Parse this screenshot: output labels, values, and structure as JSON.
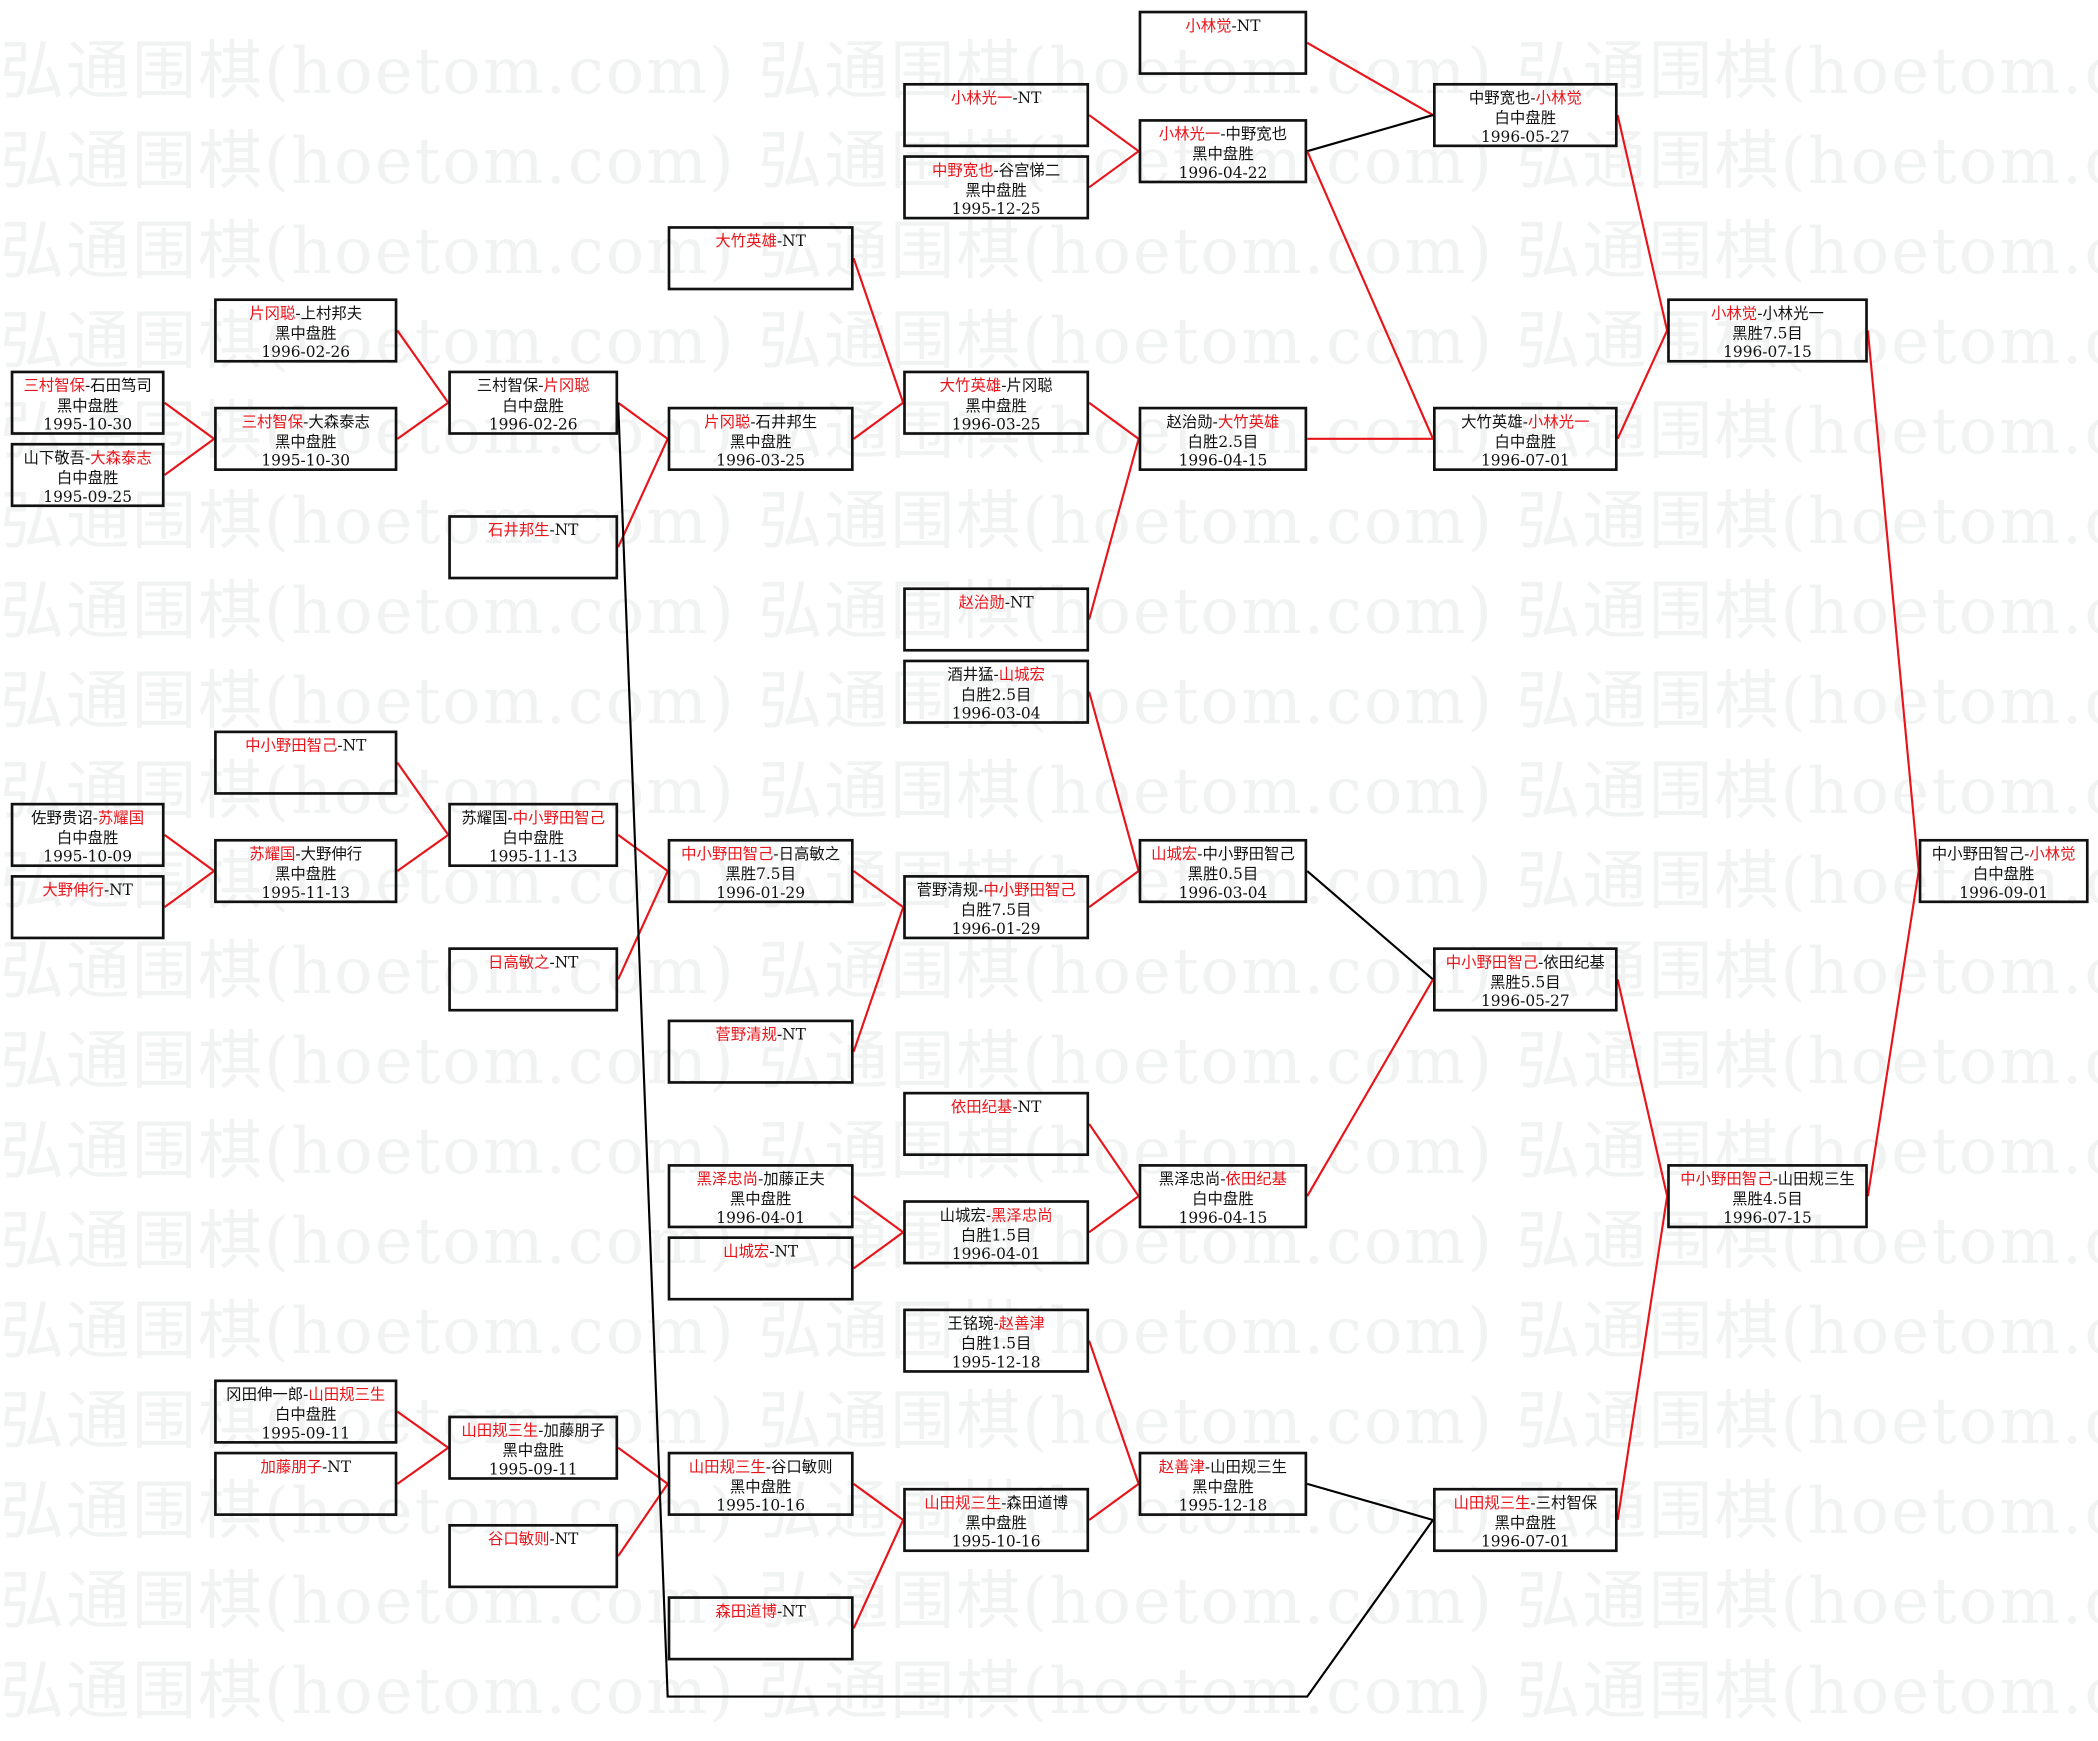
{
  "watermark": "弘通围棋(hoetom.com)",
  "colors": {
    "winner": "#e8141a",
    "text": "#111111",
    "line_red": "#e8141a",
    "line_black": "#000000"
  },
  "separator": "-",
  "boxes": [
    {
      "players": [
        "三村智保",
        "石田笃司"
      ],
      "winner": 0,
      "result": "黑中盘胜",
      "date": "1995-10-30"
    },
    {
      "players": [
        "山下敬吾",
        "大森泰志"
      ],
      "winner": 1,
      "result": "白中盘胜",
      "date": "1995-09-25"
    },
    {
      "players": [
        "佐野贵诏",
        "苏耀国"
      ],
      "winner": 1,
      "result": "白中盘胜",
      "date": "1995-10-09"
    },
    {
      "players": [
        "大野伸行",
        "NT"
      ],
      "winner": 0
    },
    {
      "players": [
        "片冈聪",
        "上村邦夫"
      ],
      "winner": 0,
      "result": "黑中盘胜",
      "date": "1996-02-26"
    },
    {
      "players": [
        "三村智保",
        "大森泰志"
      ],
      "winner": 0,
      "result": "黑中盘胜",
      "date": "1995-10-30"
    },
    {
      "players": [
        "中小野田智己",
        "NT"
      ],
      "winner": 0
    },
    {
      "players": [
        "苏耀国",
        "大野伸行"
      ],
      "winner": 0,
      "result": "黑中盘胜",
      "date": "1995-11-13"
    },
    {
      "players": [
        "冈田伸一郎",
        "山田规三生"
      ],
      "winner": 1,
      "result": "白中盘胜",
      "date": "1995-09-11"
    },
    {
      "players": [
        "加藤朋子",
        "NT"
      ],
      "winner": 0
    },
    {
      "players": [
        "三村智保",
        "片冈聪"
      ],
      "winner": 1,
      "result": "白中盘胜",
      "date": "1996-02-26"
    },
    {
      "players": [
        "石井邦生",
        "NT"
      ],
      "winner": 0
    },
    {
      "players": [
        "苏耀国",
        "中小野田智己"
      ],
      "winner": 1,
      "result": "白中盘胜",
      "date": "1995-11-13"
    },
    {
      "players": [
        "日高敏之",
        "NT"
      ],
      "winner": 0
    },
    {
      "players": [
        "山田规三生",
        "加藤朋子"
      ],
      "winner": 0,
      "result": "黑中盘胜",
      "date": "1995-09-11"
    },
    {
      "players": [
        "谷口敏则",
        "NT"
      ],
      "winner": 0
    },
    {
      "players": [
        "大竹英雄",
        "NT"
      ],
      "winner": 0
    },
    {
      "players": [
        "片冈聪",
        "石井邦生"
      ],
      "winner": 0,
      "result": "黑中盘胜",
      "date": "1996-03-25"
    },
    {
      "players": [
        "中小野田智己",
        "日高敏之"
      ],
      "winner": 0,
      "result": "黑胜7.5目",
      "date": "1996-01-29"
    },
    {
      "players": [
        "菅野清规",
        "NT"
      ],
      "winner": 0
    },
    {
      "players": [
        "黑泽忠尚",
        "加藤正夫"
      ],
      "winner": 0,
      "result": "黑中盘胜",
      "date": "1996-04-01"
    },
    {
      "players": [
        "山城宏",
        "NT"
      ],
      "winner": 0
    },
    {
      "players": [
        "山田规三生",
        "谷口敏则"
      ],
      "winner": 0,
      "result": "黑中盘胜",
      "date": "1995-10-16"
    },
    {
      "players": [
        "森田道博",
        "NT"
      ],
      "winner": 0
    },
    {
      "players": [
        "小林光一",
        "NT"
      ],
      "winner": 0
    },
    {
      "players": [
        "中野宽也",
        "谷宫悌二"
      ],
      "winner": 0,
      "result": "黑中盘胜",
      "date": "1995-12-25"
    },
    {
      "players": [
        "大竹英雄",
        "片冈聪"
      ],
      "winner": 0,
      "result": "黑中盘胜",
      "date": "1996-03-25"
    },
    {
      "players": [
        "赵治勋",
        "NT"
      ],
      "winner": 0
    },
    {
      "players": [
        "酒井猛",
        "山城宏"
      ],
      "winner": 1,
      "result": "白胜2.5目",
      "date": "1996-03-04"
    },
    {
      "players": [
        "菅野清规",
        "中小野田智己"
      ],
      "winner": 1,
      "result": "白胜7.5目",
      "date": "1996-01-29"
    },
    {
      "players": [
        "依田纪基",
        "NT"
      ],
      "winner": 0
    },
    {
      "players": [
        "山城宏",
        "黑泽忠尚"
      ],
      "winner": 1,
      "result": "白胜1.5目",
      "date": "1996-04-01"
    },
    {
      "players": [
        "王铭琬",
        "赵善津"
      ],
      "winner": 1,
      "result": "白胜1.5目",
      "date": "1995-12-18"
    },
    {
      "players": [
        "山田规三生",
        "森田道博"
      ],
      "winner": 0,
      "result": "黑中盘胜",
      "date": "1995-10-16"
    },
    {
      "players": [
        "小林觉",
        "NT"
      ],
      "winner": 0
    },
    {
      "players": [
        "小林光一",
        "中野宽也"
      ],
      "winner": 0,
      "result": "黑中盘胜",
      "date": "1996-04-22"
    },
    {
      "players": [
        "赵治勋",
        "大竹英雄"
      ],
      "winner": 1,
      "result": "白胜2.5目",
      "date": "1996-04-15"
    },
    {
      "players": [
        "山城宏",
        "中小野田智己"
      ],
      "winner": 0,
      "result": "黑胜0.5目",
      "date": "1996-03-04"
    },
    {
      "players": [
        "黑泽忠尚",
        "依田纪基"
      ],
      "winner": 1,
      "result": "白中盘胜",
      "date": "1996-04-15"
    },
    {
      "players": [
        "赵善津",
        "山田规三生"
      ],
      "winner": 0,
      "result": "黑中盘胜",
      "date": "1995-12-18"
    },
    {
      "players": [
        "中野宽也",
        "小林觉"
      ],
      "winner": 1,
      "result": "白中盘胜",
      "date": "1996-05-27"
    },
    {
      "players": [
        "大竹英雄",
        "小林光一"
      ],
      "winner": 1,
      "result": "白中盘胜",
      "date": "1996-07-01"
    },
    {
      "players": [
        "中小野田智己",
        "依田纪基"
      ],
      "winner": 0,
      "result": "黑胜5.5目",
      "date": "1996-05-27"
    },
    {
      "players": [
        "山田规三生",
        "三村智保"
      ],
      "winner": 0,
      "result": "黑中盘胜",
      "date": "1996-07-01"
    },
    {
      "players": [
        "小林觉",
        "小林光一"
      ],
      "winner": 0,
      "result": "黑胜7.5目",
      "date": "1996-07-15"
    },
    {
      "players": [
        "中小野田智己",
        "山田规三生"
      ],
      "winner": 0,
      "result": "黑胜4.5目",
      "date": "1996-07-15"
    },
    {
      "players": [
        "中小野田智己",
        "小林觉"
      ],
      "winner": 1,
      "result": "白中盘胜",
      "date": "1996-09-01"
    }
  ]
}
